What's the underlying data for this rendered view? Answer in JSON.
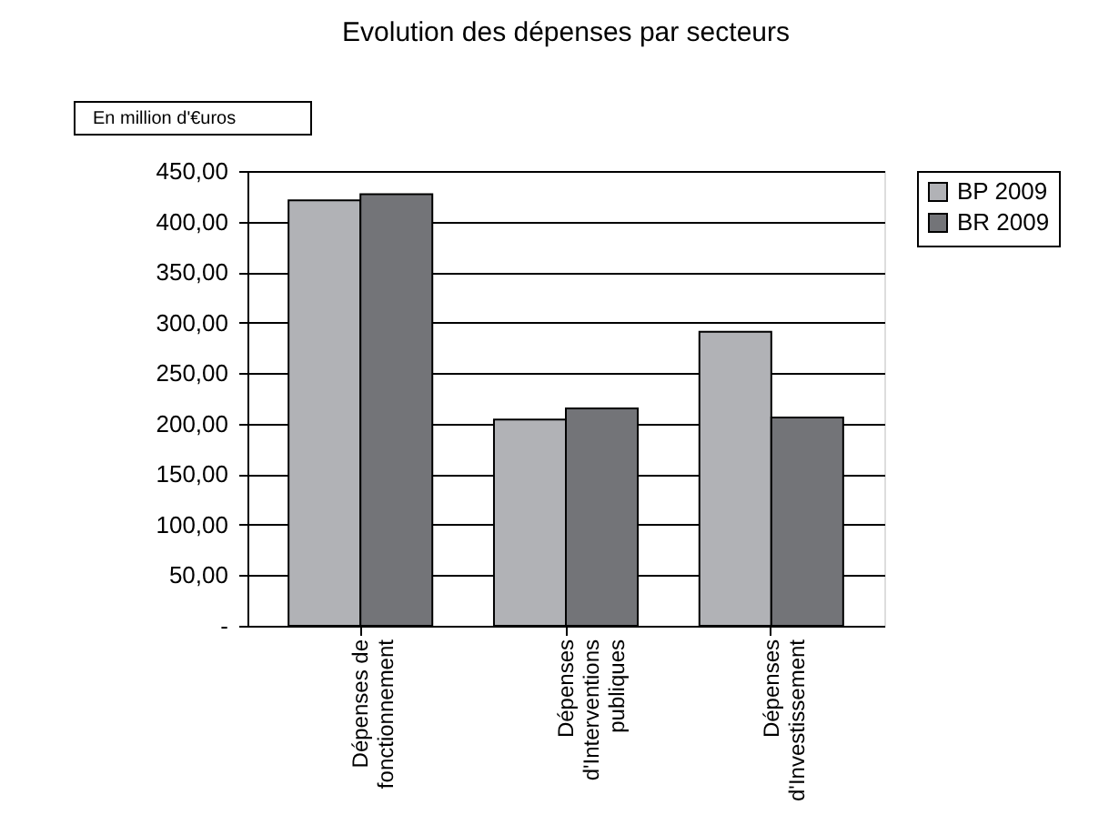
{
  "chart_data": {
    "type": "bar",
    "title": "Evolution des dépenses par secteurs",
    "annotations": [
      "En million d'€uros"
    ],
    "categories": [
      "Dépenses de\nfonctionnement",
      "Dépenses\nd'Interventions\npubliques",
      "Dépenses\nd'Investissement"
    ],
    "series": [
      {
        "name": "BP 2009",
        "color": "#b1b2b6",
        "values": [
          421,
          204,
          291
        ]
      },
      {
        "name": "BR 2009",
        "color": "#737478",
        "values": [
          427,
          215,
          206
        ]
      }
    ],
    "ylim": [
      0,
      450
    ],
    "yticks": [
      {
        "value": 0,
        "label": "-"
      },
      {
        "value": 50,
        "label": "50,00"
      },
      {
        "value": 100,
        "label": "100,00"
      },
      {
        "value": 150,
        "label": "150,00"
      },
      {
        "value": 200,
        "label": "200,00"
      },
      {
        "value": 250,
        "label": "250,00"
      },
      {
        "value": 300,
        "label": "300,00"
      },
      {
        "value": 350,
        "label": "350,00"
      },
      {
        "value": 400,
        "label": "400,00"
      },
      {
        "value": 450,
        "label": "450,00"
      }
    ],
    "grid": "y",
    "legend": "right"
  }
}
